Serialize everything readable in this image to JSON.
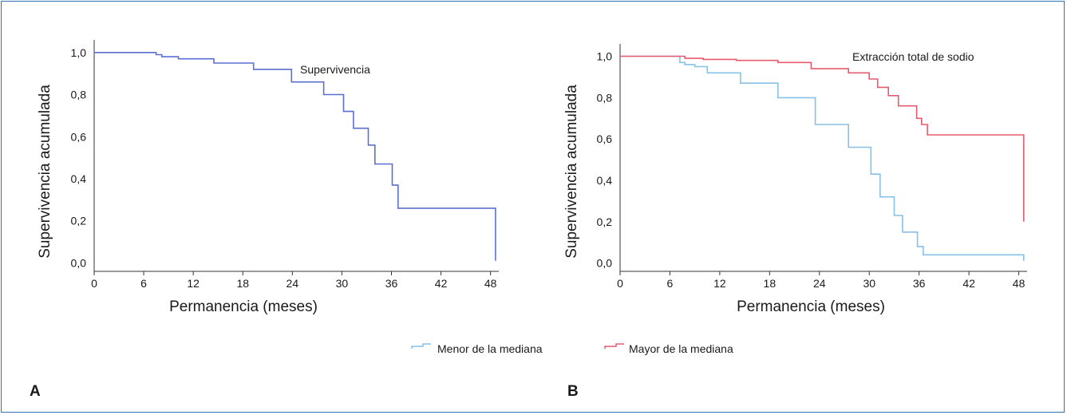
{
  "panels": {
    "a": {
      "letter": "A"
    },
    "b": {
      "letter": "B"
    }
  },
  "colors": {
    "supervivencia": "#5b6fd0",
    "menor": "#86c1e8",
    "mayor": "#e85a6e",
    "frame": "#2f72b5"
  },
  "legend": {
    "menor": "Menor de la mediana",
    "mayor": "Mayor de la mediana"
  },
  "chart_data": [
    {
      "type": "line",
      "step": true,
      "annotation": "Supervivencia",
      "xlabel": "Permanencia (meses)",
      "ylabel": "Supervivencia acumulada",
      "xlim": [
        0,
        49
      ],
      "ylim": [
        -0.04,
        1.06
      ],
      "xticks": [
        0,
        6,
        12,
        18,
        24,
        30,
        36,
        42,
        48
      ],
      "xtick_labels": [
        "0",
        "6",
        "12",
        "18",
        "24",
        "30",
        "36",
        "42",
        "48"
      ],
      "yticks": [
        0,
        0.2,
        0.4,
        0.6,
        0.8,
        1.0
      ],
      "ytick_labels": [
        "0,0",
        "0,2",
        "0,4",
        "0,6",
        "0,8",
        "1,0"
      ],
      "series": [
        {
          "color": "#5b6fd0",
          "x": [
            0,
            7.5,
            8.2,
            10.2,
            14.5,
            19.3,
            23.9,
            27.8,
            30.2,
            31.4,
            33.2,
            34.0,
            36.1,
            36.8,
            48.6,
            48.6
          ],
          "y": [
            1.0,
            0.99,
            0.98,
            0.97,
            0.95,
            0.92,
            0.86,
            0.8,
            0.72,
            0.64,
            0.56,
            0.47,
            0.37,
            0.26,
            0.26,
            0.01
          ]
        }
      ]
    },
    {
      "type": "line",
      "step": true,
      "annotation": "Extracción total de sodio",
      "xlabel": "Permanencia (meses)",
      "ylabel": "Supervivencia acumulada",
      "xlim": [
        0,
        49
      ],
      "ylim": [
        -0.04,
        1.06
      ],
      "xticks": [
        0,
        6,
        12,
        18,
        24,
        30,
        36,
        42,
        48
      ],
      "xtick_labels": [
        "0",
        "6",
        "12",
        "18",
        "24",
        "30",
        "36",
        "42",
        "48"
      ],
      "yticks": [
        0,
        0.2,
        0.4,
        0.6,
        0.8,
        1.0
      ],
      "ytick_labels": [
        "0,0",
        "0,2",
        "0,4",
        "0,6",
        "0,8",
        "1,0"
      ],
      "series": [
        {
          "legend_key": "menor",
          "color": "#86c1e8",
          "x": [
            0,
            7.2,
            7.8,
            9.0,
            10.5,
            14.5,
            19.0,
            23.5,
            27.5,
            30.2,
            31.3,
            33.0,
            34.0,
            35.8,
            36.5,
            48.6,
            48.6
          ],
          "y": [
            1.0,
            0.97,
            0.96,
            0.95,
            0.92,
            0.87,
            0.8,
            0.67,
            0.56,
            0.43,
            0.32,
            0.23,
            0.15,
            0.08,
            0.04,
            0.04,
            0.01
          ]
        },
        {
          "legend_key": "mayor",
          "color": "#e85a6e",
          "x": [
            0,
            7.8,
            10.0,
            14.0,
            19.0,
            23.0,
            27.5,
            30.0,
            31.0,
            32.3,
            33.5,
            35.7,
            36.3,
            37.0,
            48.6,
            48.6
          ],
          "y": [
            1.0,
            0.99,
            0.985,
            0.98,
            0.97,
            0.94,
            0.92,
            0.89,
            0.85,
            0.81,
            0.76,
            0.7,
            0.67,
            0.62,
            0.62,
            0.2
          ]
        }
      ]
    }
  ]
}
